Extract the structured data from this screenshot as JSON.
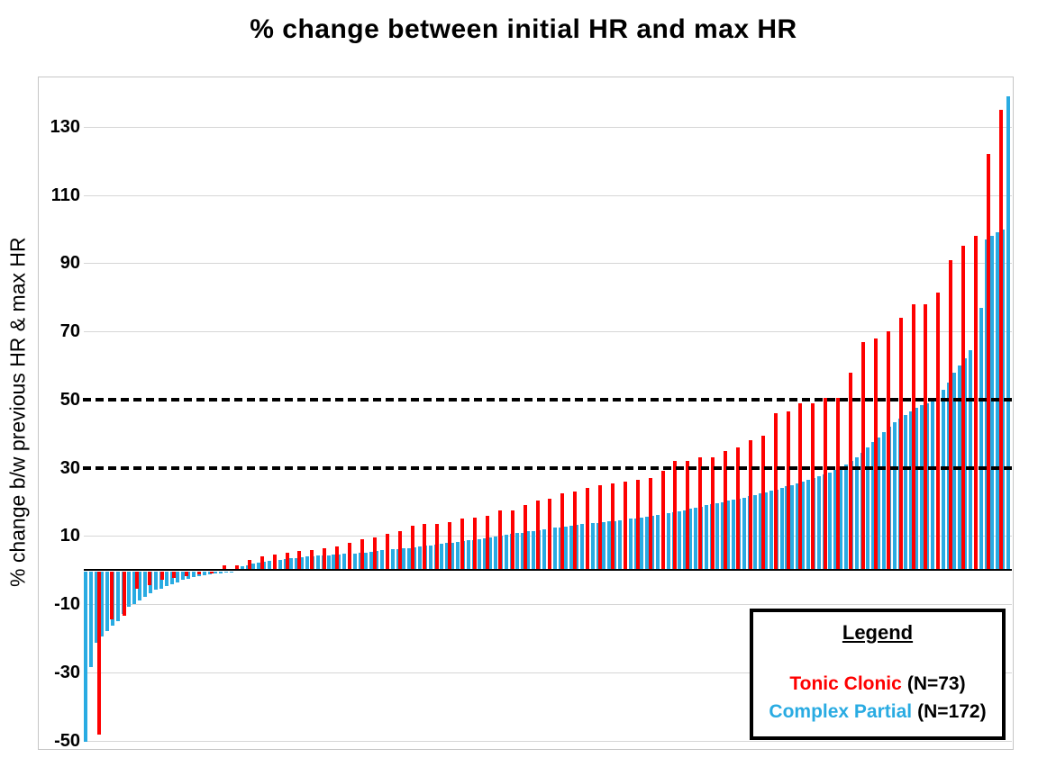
{
  "title": "% change between initial HR and max HR",
  "legend": {
    "title": "Legend",
    "items": [
      {
        "name": "Tonic Clonic",
        "count": "(N=73)"
      },
      {
        "name": "Complex Partial",
        "count": "(N=172)"
      }
    ]
  },
  "chart_data": {
    "type": "bar",
    "title": "% change between initial HR and max HR",
    "xlabel": "",
    "ylabel": "% change b/w previous HR & max HR",
    "ylim": [
      -52.5,
      144.5
    ],
    "yticks": [
      130,
      110,
      90,
      70,
      50,
      30,
      10,
      -10,
      -30,
      -50
    ],
    "gridlines": [
      130,
      110,
      90,
      70,
      10,
      -10,
      -30,
      -50
    ],
    "dashed_reference_lines": [
      50,
      30
    ],
    "grid": "horizontal-light-gray",
    "legend_position": "inside-bottom-right",
    "note": "Each series independently sorted ascending left to right; values estimated from gridlines",
    "series": [
      {
        "name": "Tonic Clonic",
        "n": 73,
        "color": "#fe0000",
        "values": [
          -48,
          -14,
          -13,
          -5,
          -4,
          -2.5,
          -2,
          -1.5,
          -1,
          -0.5,
          1.5,
          1.5,
          3,
          4,
          4.5,
          5,
          5.5,
          6,
          6.5,
          7,
          8,
          9,
          9.5,
          10.5,
          11.5,
          13,
          13.5,
          13.5,
          14,
          15,
          15.5,
          16,
          17.5,
          17.5,
          19,
          20.5,
          21,
          22.5,
          23,
          24,
          25,
          25.5,
          26,
          26.5,
          27,
          29,
          32,
          32,
          33,
          33,
          35,
          36,
          38,
          39.5,
          46,
          46.5,
          49,
          49,
          50.5,
          50.5,
          58,
          67,
          68,
          70,
          74,
          78,
          78,
          81.5,
          91,
          95,
          98,
          122,
          135
        ]
      },
      {
        "name": "Complex Partial",
        "n": 172,
        "color": "#29abe2",
        "values": [
          -50,
          -28,
          -21,
          -19,
          -17.5,
          -16,
          -14.5,
          -12.5,
          -10.5,
          -9.5,
          -8.5,
          -7.5,
          -6.5,
          -5.5,
          -5,
          -4.4,
          -3.8,
          -3.2,
          -2.6,
          -2.1,
          -1.7,
          -1.4,
          -1.1,
          -0.9,
          -0.7,
          -0.5,
          -0.4,
          -0.3,
          0.5,
          1,
          1.5,
          2,
          2.2,
          2.4,
          2.6,
          2.8,
          3,
          3.2,
          3.4,
          3.6,
          3.8,
          4,
          4.1,
          4.2,
          4.3,
          4.4,
          4.5,
          4.6,
          4.7,
          4.8,
          4.9,
          5,
          5.2,
          5.4,
          5.6,
          5.8,
          6,
          6.1,
          6.2,
          6.4,
          6.5,
          6.7,
          6.9,
          7.1,
          7.3,
          7.5,
          7.7,
          7.9,
          8.1,
          8.3,
          8.5,
          8.7,
          8.9,
          9.1,
          9.3,
          9.5,
          9.8,
          10,
          10.3,
          10.5,
          10.8,
          11,
          11.3,
          11.5,
          11.8,
          12,
          12.2,
          12.4,
          12.6,
          12.8,
          13,
          13.2,
          13.4,
          13.5,
          13.7,
          13.8,
          14,
          14.2,
          14.4,
          14.6,
          14.8,
          15,
          15.2,
          15.5,
          15.7,
          16,
          16.2,
          16.5,
          16.7,
          17,
          17.3,
          17.6,
          18,
          18.3,
          18.6,
          19,
          19.3,
          19.6,
          20,
          20.3,
          20.6,
          21,
          21.3,
          21.6,
          22,
          22.4,
          22.8,
          23.2,
          23.6,
          24,
          24.5,
          25,
          25.5,
          26,
          26.5,
          27,
          27.5,
          28,
          28.7,
          29.4,
          30,
          31,
          32,
          33,
          34.5,
          36,
          37.5,
          39,
          40.5,
          42,
          43.5,
          44.5,
          45.5,
          46.5,
          47.5,
          48.5,
          49,
          50,
          51.5,
          53,
          55,
          58,
          60,
          62,
          64.5,
          72,
          77,
          97,
          98,
          99,
          100,
          139
        ]
      }
    ]
  }
}
